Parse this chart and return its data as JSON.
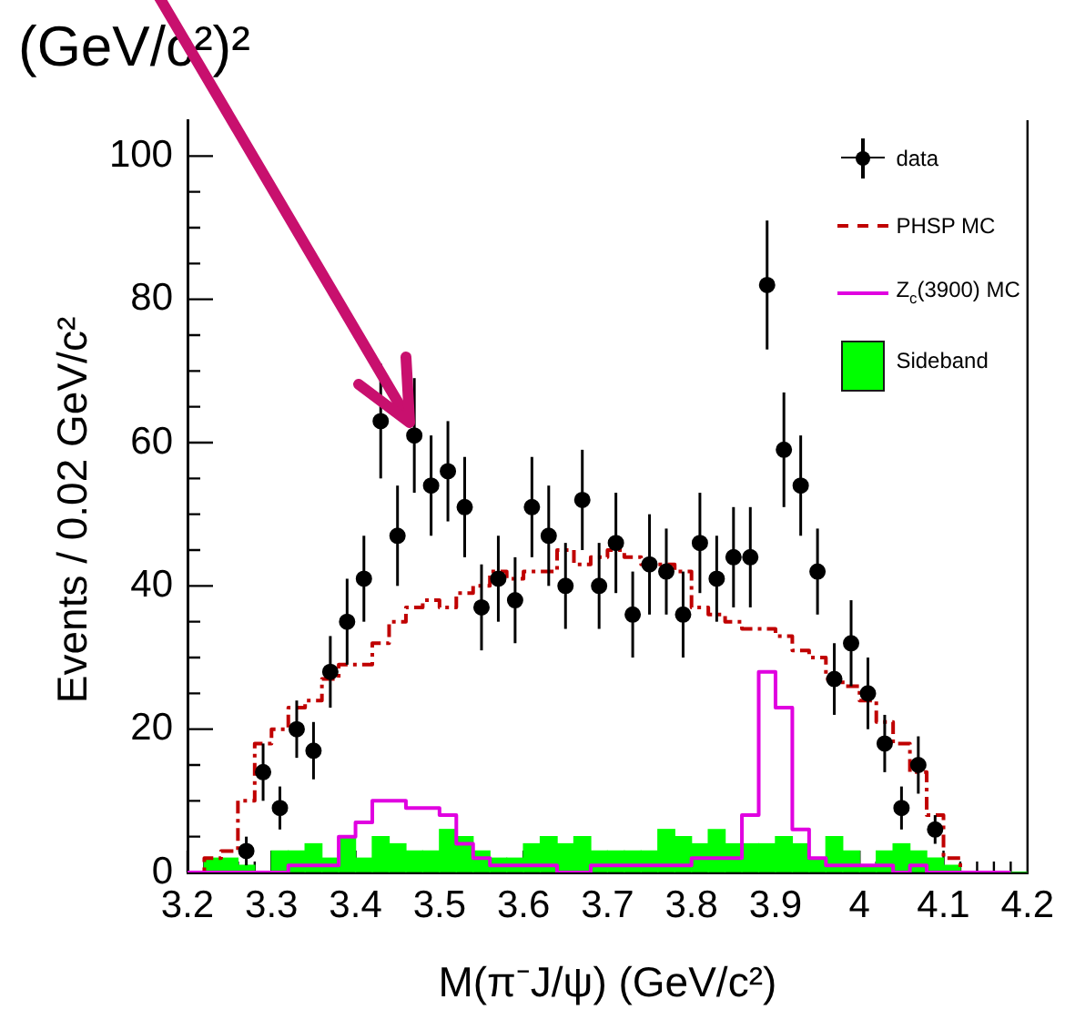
{
  "chart_data": {
    "type": "histogram",
    "title": "(GeV/c²)²",
    "xlabel": "M(π⁻J/ψ) (GeV/c²)",
    "ylabel": "Events / 0.02 GeV/c²",
    "series": [
      {
        "name": "Sideband",
        "color": "#00ff00",
        "bins": [
          3.2,
          3.22,
          3.24,
          3.26,
          3.28,
          3.3,
          3.32,
          3.34,
          3.36,
          3.38,
          3.4,
          3.42,
          3.44,
          3.46,
          3.48,
          3.5,
          3.52,
          3.54,
          3.56,
          3.58,
          3.6,
          3.62,
          3.64,
          3.66,
          3.68,
          3.7,
          3.72,
          3.74,
          3.76,
          3.78,
          3.8,
          3.82,
          3.84,
          3.86,
          3.88,
          3.9,
          3.92,
          3.94,
          3.96,
          3.98,
          4,
          4.02,
          4.04,
          4.06,
          4.08,
          4.1,
          4.12,
          4.14,
          4.16,
          4.18,
          4.2
        ],
        "values": [
          0,
          2,
          2,
          1,
          0,
          3,
          3,
          4,
          2,
          5,
          2,
          5,
          4,
          3,
          3,
          6,
          5,
          3,
          2,
          2,
          4,
          5,
          4,
          5,
          3,
          3,
          3,
          3,
          6,
          5,
          4,
          6,
          4,
          4,
          4,
          5,
          4,
          2,
          5,
          3,
          1,
          3,
          4,
          3,
          2,
          1,
          0,
          0,
          0,
          0
        ]
      },
      {
        "name": "Z$_{c}$(3900) MC",
        "type": "step",
        "color": "#e000e0",
        "line_style": "solid",
        "x": [
          3.2,
          3.22,
          3.24,
          3.26,
          3.28,
          3.3,
          3.32,
          3.34,
          3.36,
          3.38,
          3.4,
          3.42,
          3.44,
          3.46,
          3.48,
          3.5,
          3.52,
          3.54,
          3.56,
          3.58,
          3.6,
          3.62,
          3.64,
          3.66,
          3.68,
          3.7,
          3.72,
          3.74,
          3.76,
          3.78,
          3.8,
          3.82,
          3.84,
          3.86,
          3.88,
          3.9,
          3.92,
          3.94,
          3.96,
          3.98,
          4,
          4.02,
          4.04,
          4.06,
          4.08,
          4.1,
          4.12,
          4.14,
          4.16,
          4.18
        ],
        "values": [
          0,
          0,
          0,
          0,
          0,
          0,
          1,
          1,
          1,
          5,
          7,
          10,
          10,
          9,
          9,
          8,
          4,
          2,
          1,
          1,
          1,
          1,
          0,
          0,
          1,
          1,
          1,
          1,
          1,
          1,
          2,
          2,
          2,
          8,
          28,
          23,
          6,
          2,
          1,
          1,
          1,
          1,
          0,
          1,
          0,
          0,
          0,
          0,
          0,
          0
        ]
      },
      {
        "name": "PHSP MC",
        "type": "step",
        "color": "#c00000",
        "line_style": "dashed",
        "x": [
          3.2,
          3.22,
          3.24,
          3.26,
          3.28,
          3.3,
          3.32,
          3.34,
          3.36,
          3.38,
          3.4,
          3.42,
          3.44,
          3.46,
          3.48,
          3.5,
          3.52,
          3.54,
          3.56,
          3.58,
          3.6,
          3.62,
          3.64,
          3.66,
          3.68,
          3.7,
          3.72,
          3.74,
          3.76,
          3.78,
          3.8,
          3.82,
          3.84,
          3.86,
          3.88,
          3.9,
          3.92,
          3.94,
          3.96,
          3.98,
          4,
          4.02,
          4.04,
          4.06,
          4.08,
          4.1,
          4.12,
          4.14,
          4.16,
          4.18
        ],
        "values": [
          0,
          2,
          3,
          10,
          18,
          20,
          23,
          24,
          27,
          29,
          29,
          32,
          35,
          37,
          38,
          37,
          39,
          40,
          42,
          41,
          42,
          42,
          45,
          43,
          44,
          45,
          44,
          43,
          43,
          42,
          37,
          36,
          35,
          34,
          34,
          33,
          31,
          30,
          27,
          26,
          24,
          21,
          18,
          14,
          8,
          2,
          0,
          0,
          0,
          0
        ]
      },
      {
        "name": "data",
        "type": "scatter",
        "color": "#000000",
        "marker": "circle",
        "x": [
          3.27,
          3.29,
          3.31,
          3.33,
          3.35,
          3.37,
          3.39,
          3.41,
          3.43,
          3.45,
          3.47,
          3.49,
          3.51,
          3.53,
          3.55,
          3.57,
          3.59,
          3.61,
          3.63,
          3.65,
          3.67,
          3.69,
          3.71,
          3.73,
          3.75,
          3.77,
          3.79,
          3.81,
          3.83,
          3.85,
          3.87,
          3.89,
          3.91,
          3.93,
          3.95,
          3.97,
          3.99,
          4.01,
          4.03,
          4.05,
          4.07,
          4.09
        ],
        "values": [
          3,
          14,
          9,
          20,
          17,
          28,
          35,
          41,
          63,
          47,
          61,
          54,
          56,
          51,
          37,
          41,
          38,
          51,
          47,
          40,
          52,
          40,
          46,
          36,
          43,
          42,
          36,
          46,
          41,
          44,
          44,
          82,
          59,
          54,
          42,
          27,
          32,
          25,
          18,
          9,
          15,
          6
        ],
        "errors": [
          2,
          4,
          3,
          4,
          4,
          5,
          6,
          6,
          8,
          7,
          8,
          7,
          7,
          7,
          6,
          6,
          6,
          7,
          7,
          6,
          7,
          6,
          7,
          6,
          7,
          6,
          6,
          7,
          6,
          7,
          7,
          9,
          8,
          7,
          6,
          5,
          6,
          5,
          4,
          3,
          4,
          2
        ]
      }
    ],
    "xlim": [
      3.2,
      4.2
    ],
    "xticks": [
      3.2,
      {
        "value": 3.22,
        "label": null
      },
      {
        "value": 3.24,
        "label": null
      },
      {
        "value": 3.26,
        "label": null
      },
      {
        "value": 3.28,
        "label": null
      },
      3.3,
      {
        "value": 3.32,
        "label": null
      },
      {
        "value": 3.34,
        "label": null
      },
      {
        "value": 3.36,
        "label": null
      },
      {
        "value": 3.38,
        "label": null
      },
      3.4,
      {
        "value": 3.42,
        "label": null
      },
      {
        "value": 3.44,
        "label": null
      },
      {
        "value": 3.46,
        "label": null
      },
      {
        "value": 3.48,
        "label": null
      },
      3.5,
      {
        "value": 3.52,
        "label": null
      },
      {
        "value": 3.54,
        "label": null
      },
      {
        "value": 3.56,
        "label": null
      },
      {
        "value": 3.58,
        "label": null
      },
      3.6,
      {
        "value": 3.62,
        "label": null
      },
      {
        "value": 3.64,
        "label": null
      },
      {
        "value": 3.66,
        "label": null
      },
      {
        "value": 3.68,
        "label": null
      },
      3.7,
      {
        "value": 3.72,
        "label": null
      },
      {
        "value": 3.74,
        "label": null
      },
      {
        "value": 3.76,
        "label": null
      },
      {
        "value": 3.78,
        "label": null
      },
      3.8,
      {
        "value": 3.82,
        "label": null
      },
      {
        "value": 3.84,
        "label": null
      },
      {
        "value": 3.86,
        "label": null
      },
      {
        "value": 3.88,
        "label": null
      },
      3.9,
      {
        "value": 3.92,
        "label": null
      },
      {
        "value": 3.94,
        "label": null
      },
      {
        "value": 3.96,
        "label": null
      },
      {
        "value": 3.98,
        "label": null
      },
      4,
      {
        "value": 4.02,
        "label": null
      },
      {
        "value": 4.04,
        "label": null
      },
      {
        "value": 4.06,
        "label": null
      },
      {
        "value": 4.08,
        "label": null
      },
      4.1,
      {
        "value": 4.12,
        "label": null
      },
      {
        "value": 4.14,
        "label": null
      },
      {
        "value": 4.16,
        "label": null
      },
      {
        "value": 4.18,
        "label": null
      },
      4.2
    ],
    "ylim": [
      0,
      105
    ],
    "yticks": [
      0,
      {
        "value": 5,
        "label": null
      },
      {
        "value": 10,
        "label": null
      },
      {
        "value": 15,
        "label": null
      },
      20,
      {
        "value": 25,
        "label": null
      },
      {
        "value": 30,
        "label": null
      },
      {
        "value": 35,
        "label": null
      },
      40,
      {
        "value": 45,
        "label": null
      },
      {
        "value": 50,
        "label": null
      },
      {
        "value": 55,
        "label": null
      },
      60,
      {
        "value": 65,
        "label": null
      },
      {
        "value": 70,
        "label": null
      },
      {
        "value": 75,
        "label": null
      },
      80,
      {
        "value": 85,
        "label": null
      },
      {
        "value": 90,
        "label": null
      },
      {
        "value": 95,
        "label": null
      },
      100
    ],
    "grid": false,
    "legend": "top right"
  }
}
